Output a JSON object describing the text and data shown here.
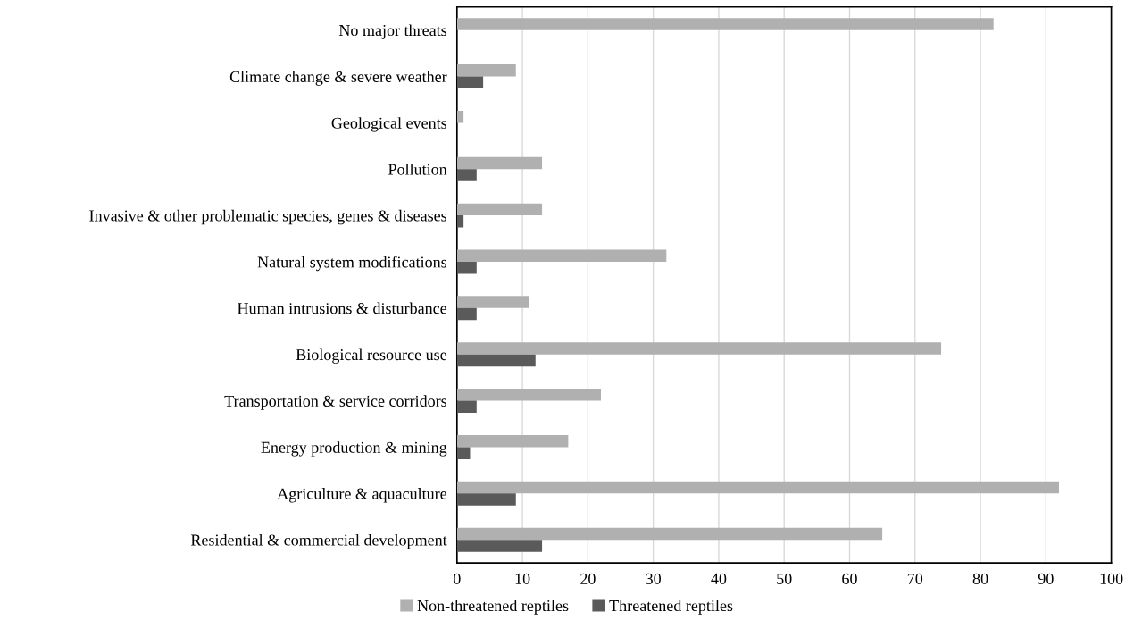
{
  "chart_data": {
    "type": "bar",
    "orientation": "horizontal",
    "categories": [
      "No major threats",
      "Climate change & severe weather",
      "Geological events",
      "Pollution",
      "Invasive & other problematic species, genes & diseases",
      "Natural system modifications",
      "Human intrusions & disturbance",
      "Biological resource use",
      "Transportation & service corridors",
      "Energy production & mining",
      "Agriculture & aquaculture",
      "Residential & commercial development"
    ],
    "series": [
      {
        "name": "Non-threatened reptiles",
        "color": "#b0b0b0",
        "values": [
          82,
          9,
          1,
          13,
          13,
          32,
          11,
          74,
          22,
          17,
          92,
          65
        ]
      },
      {
        "name": "Threatened reptiles",
        "color": "#5a5a5a",
        "values": [
          0,
          4,
          0,
          3,
          1,
          3,
          3,
          12,
          3,
          2,
          9,
          13
        ]
      }
    ],
    "xlim": [
      0,
      100
    ],
    "xticks": [
      0,
      10,
      20,
      30,
      40,
      50,
      60,
      70,
      80,
      90,
      100
    ],
    "grid": "x",
    "legend": "bottom"
  }
}
